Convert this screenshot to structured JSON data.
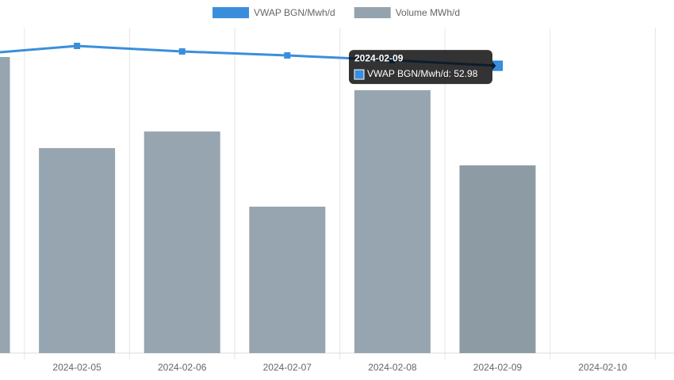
{
  "chart_data": {
    "type": "bar-line",
    "categories": [
      null,
      "2024-02-05",
      "2024-02-06",
      "2024-02-07",
      "2024-02-08",
      "2024-02-09",
      "2024-02-10"
    ],
    "series": [
      {
        "name": "VWAP BGN/Mwh/d",
        "type": "line",
        "color": "#3a8fdc",
        "values": [
          55.04,
          56.64,
          55.62,
          54.89,
          54.01,
          52.98,
          null
        ]
      },
      {
        "name": "Volume MWh/d",
        "type": "bar",
        "axis": "y2",
        "color": "#94a3ad",
        "values": [
          91.0,
          63.0,
          68.1,
          45.0,
          80.8,
          57.7,
          null
        ]
      }
    ],
    "ylim": [
      0,
      60
    ],
    "y2lim": [
      0,
      100
    ],
    "grid": true,
    "legend": "top",
    "tooltip": {
      "category": 5,
      "series": 0
    }
  }
}
